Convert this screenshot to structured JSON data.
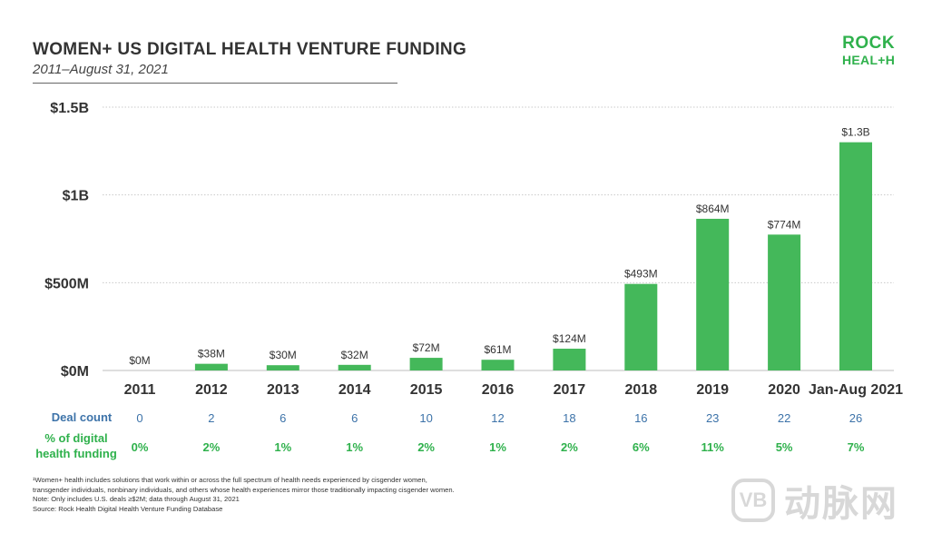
{
  "header": {
    "title": "WOMEN+ US DIGITAL HEALTH VENTURE FUNDING",
    "subtitle": "2011–August 31, 2021"
  },
  "logo": {
    "line1": "ROCK",
    "line2": "HEAL+H"
  },
  "chart_data": {
    "type": "bar",
    "title": "WOMEN+ US DIGITAL HEALTH VENTURE FUNDING",
    "subtitle": "2011–August 31, 2021",
    "xlabel": "",
    "ylabel": "",
    "ylim": [
      0,
      1500
    ],
    "y_unit": "$M",
    "y_ticks": [
      {
        "value": 0,
        "label": "$0M"
      },
      {
        "value": 500,
        "label": "$500M"
      },
      {
        "value": 1000,
        "label": "$1B"
      },
      {
        "value": 1500,
        "label": "$1.5B"
      }
    ],
    "grid": true,
    "categories": [
      "2011",
      "2012",
      "2013",
      "2014",
      "2015",
      "2016",
      "2017",
      "2018",
      "2019",
      "2020",
      "Jan-Aug 2021"
    ],
    "values": [
      0,
      38,
      30,
      32,
      72,
      61,
      124,
      493,
      864,
      774,
      1300
    ],
    "value_labels": [
      "$0M",
      "$38M",
      "$30M",
      "$32M",
      "$72M",
      "$61M",
      "$124M",
      "$493M",
      "$864M",
      "$774M",
      "$1.3B"
    ],
    "deal_counts": [
      "0",
      "2",
      "6",
      "6",
      "10",
      "12",
      "18",
      "16",
      "23",
      "22",
      "26"
    ],
    "pct_of_digital_health_funding": [
      "0%",
      "2%",
      "1%",
      "1%",
      "2%",
      "1%",
      "2%",
      "6%",
      "11%",
      "5%",
      "7%"
    ],
    "bar_color": "#44b85a"
  },
  "rows": {
    "deal_count_label": "Deal count",
    "pct_label_line1": "% of digital",
    "pct_label_line2": "health funding"
  },
  "colors": {
    "accent_green": "#2fb14c",
    "deal_blue": "#3d73a9"
  },
  "footnotes": {
    "line1": "¹Women+ health includes solutions that work within or across the full spectrum of health needs experienced by cisgender women,",
    "line2": "transgender individuals, nonbinary individuals, and others whose health experiences mirror those traditionally impacting cisgender women.",
    "line3": "Note: Only includes U.S. deals ≥$2M; data through August 31, 2021",
    "line4": "Source: Rock Health Digital Health Venture Funding Database"
  },
  "watermark": {
    "badge": "VB",
    "text": "动脉网"
  }
}
